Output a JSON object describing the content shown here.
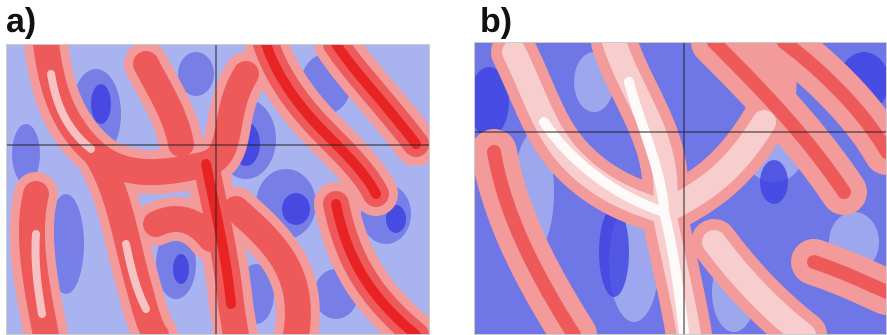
{
  "panels": [
    {
      "label": "a)"
    },
    {
      "label": "b)"
    }
  ],
  "colors": {
    "deep_blue": "#3a3de0",
    "blue": "#6f77e6",
    "light_blue": "#a9b3ef",
    "pale_blue": "#d6dcf6",
    "white": "#ffffff",
    "pale_red": "#f8cdcd",
    "light_red": "#f39a9a",
    "red": "#ee5a5a",
    "deep_red": "#e81a1a",
    "crosshair": "#222222"
  }
}
